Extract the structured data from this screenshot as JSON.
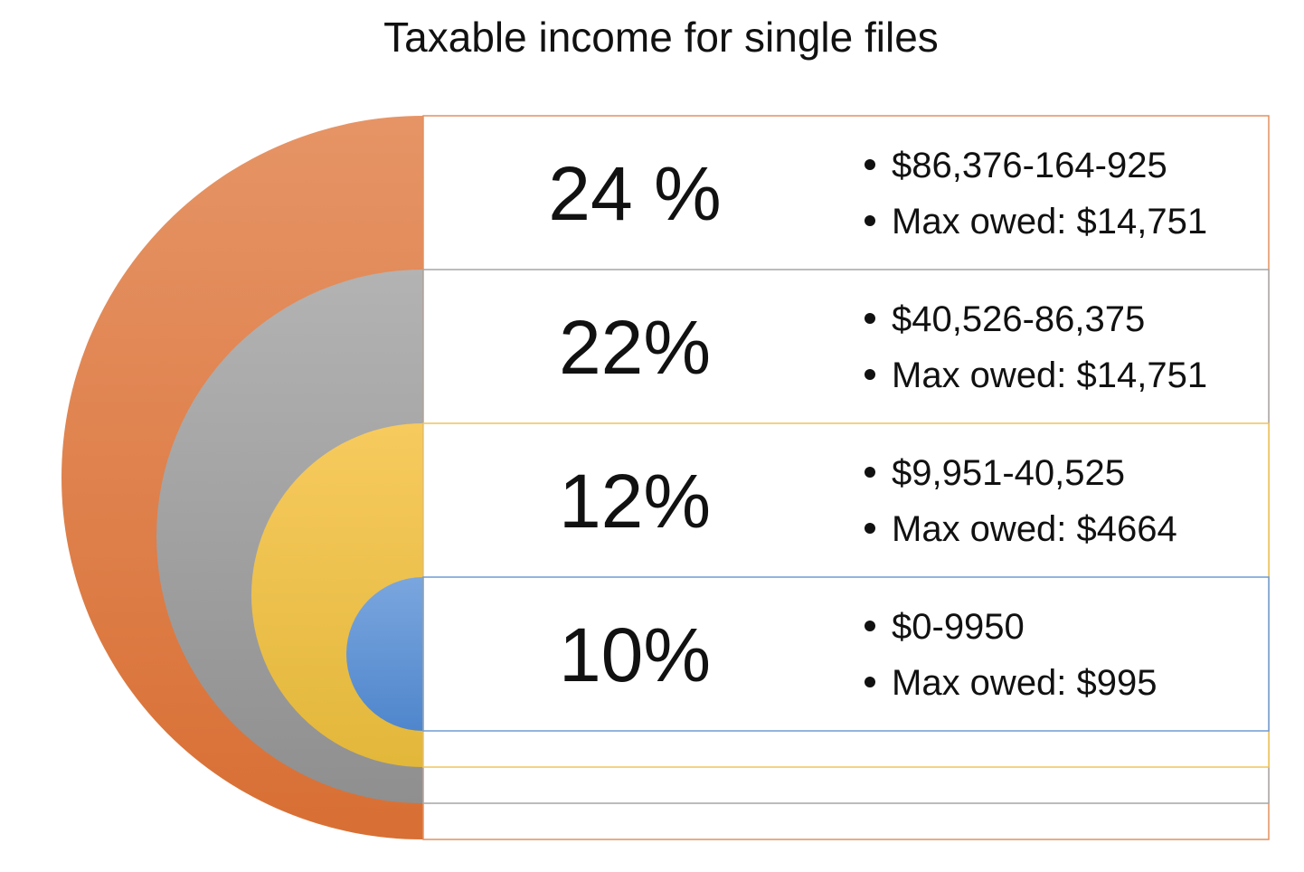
{
  "title": "Taxable income for single files",
  "brackets": [
    {
      "rate": "24 %",
      "range": "$86,376-164-925",
      "max_owed": "Max owed: $14,751",
      "color_top": "#e69466",
      "color_bottom": "#d86f34",
      "border": "#e3905f"
    },
    {
      "rate": "22%",
      "range": "$40,526-86,375",
      "max_owed": "Max owed: $14,751",
      "color_top": "#b3b3b3",
      "color_bottom": "#8f8f8f",
      "border": "#a6a6a6"
    },
    {
      "rate": "12%",
      "range": "$9,951-40,525",
      "max_owed": "Max owed: $4664",
      "color_top": "#f7ca5e",
      "color_bottom": "#e2b73a",
      "border": "#efc45a"
    },
    {
      "rate": "10%",
      "range": "$0-9950",
      "max_owed": "Max owed: $995",
      "color_top": "#7aa6de",
      "color_bottom": "#4f86cc",
      "border": "#6f9bd3"
    }
  ]
}
